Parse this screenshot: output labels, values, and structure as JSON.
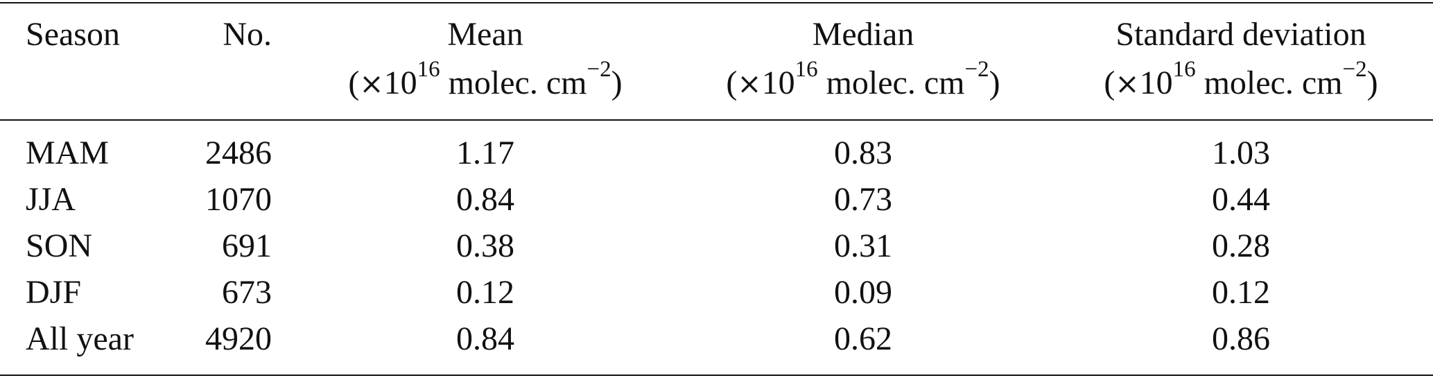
{
  "table": {
    "headers": {
      "season": "Season",
      "no": "No.",
      "mean": "Mean",
      "median": "Median",
      "sd": "Standard deviation",
      "unit": {
        "open": "(",
        "times": "×",
        "base": "10",
        "exp": "16",
        "molec": " molec. cm",
        "neg_exp": "−2",
        "close": ")"
      }
    },
    "rows": [
      {
        "season": "MAM",
        "no": "2486",
        "mean": "1.17",
        "median": "0.83",
        "sd": "1.03"
      },
      {
        "season": "JJA",
        "no": "1070",
        "mean": "0.84",
        "median": "0.73",
        "sd": "0.44"
      },
      {
        "season": "SON",
        "no": "691",
        "mean": "0.38",
        "median": "0.31",
        "sd": "0.28"
      },
      {
        "season": "DJF",
        "no": "673",
        "mean": "0.12",
        "median": "0.09",
        "sd": "0.12"
      },
      {
        "season": "All year",
        "no": "4920",
        "mean": "0.84",
        "median": "0.62",
        "sd": "0.86"
      }
    ]
  }
}
